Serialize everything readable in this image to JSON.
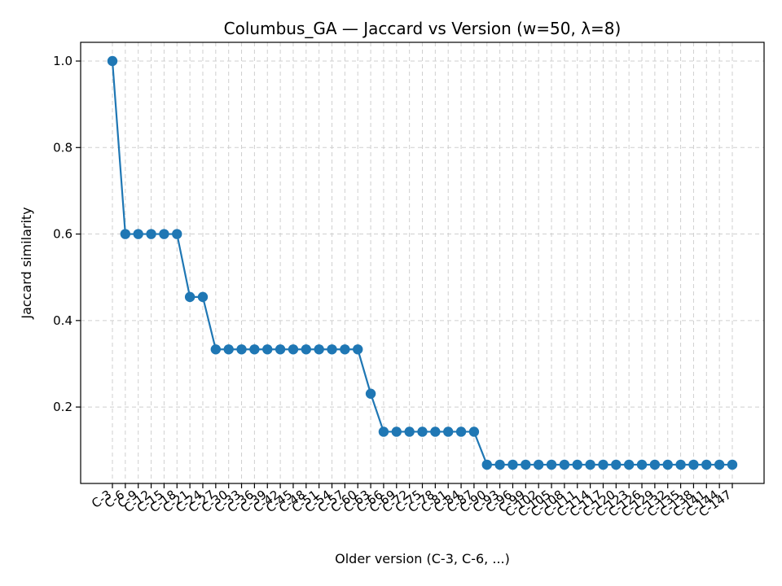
{
  "chart_data": {
    "type": "line",
    "title": "Columbus_GA — Jaccard vs Version (w=50, λ=8)",
    "xlabel": "Older version (C-3, C-6, ...)",
    "ylabel": "Jaccard similarity",
    "categories": [
      "C-3",
      "C-6",
      "C-9",
      "C-12",
      "C-15",
      "C-18",
      "C-21",
      "C-24",
      "C-27",
      "C-30",
      "C-33",
      "C-36",
      "C-39",
      "C-42",
      "C-45",
      "C-48",
      "C-51",
      "C-54",
      "C-57",
      "C-60",
      "C-63",
      "C-66",
      "C-69",
      "C-72",
      "C-75",
      "C-78",
      "C-81",
      "C-84",
      "C-87",
      "C-90",
      "C-93",
      "C-96",
      "C-99",
      "C-102",
      "C-105",
      "C-108",
      "C-111",
      "C-114",
      "C-117",
      "C-120",
      "C-123",
      "C-126",
      "C-129",
      "C-132",
      "C-135",
      "C-138",
      "C-141",
      "C-144",
      "C-147"
    ],
    "series": [
      {
        "values": [
          1.0,
          0.6,
          0.6,
          0.6,
          0.6,
          0.6,
          0.4545,
          0.4545,
          0.3333,
          0.3333,
          0.3333,
          0.3333,
          0.3333,
          0.3333,
          0.3333,
          0.3333,
          0.3333,
          0.3333,
          0.3333,
          0.3333,
          0.2308,
          0.1429,
          0.1429,
          0.1429,
          0.1429,
          0.1429,
          0.1429,
          0.1429,
          0.1429,
          0.0667,
          0.0667,
          0.0667,
          0.0667,
          0.0667,
          0.0667,
          0.0667,
          0.0667,
          0.0667,
          0.0667,
          0.0667,
          0.0667,
          0.0667,
          0.0667,
          0.0667,
          0.0667,
          0.0667,
          0.0667,
          0.0667,
          0.0667
        ]
      }
    ],
    "ylim": [
      0.0233,
      1.0433
    ],
    "yticks": [
      "0.2",
      "0.4",
      "0.6",
      "0.8",
      "1.0"
    ],
    "grid": true,
    "color": "#1f77b4"
  }
}
